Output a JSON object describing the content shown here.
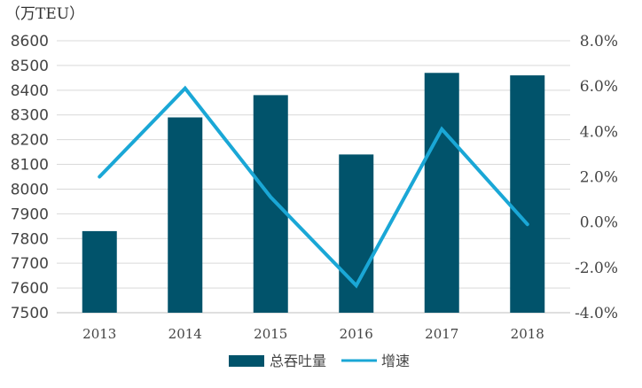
{
  "chart_data": {
    "type": "bar",
    "unit_label": "（万TEU）",
    "categories": [
      "2013",
      "2014",
      "2015",
      "2016",
      "2017",
      "2018"
    ],
    "series": [
      {
        "name": "总吞吐量",
        "type": "bar",
        "axis": "left",
        "values": [
          7830,
          8290,
          8380,
          8140,
          8470,
          8460
        ],
        "color": "#01536b"
      },
      {
        "name": "增速",
        "type": "line",
        "axis": "right",
        "values": [
          2.0,
          5.9,
          1.1,
          -2.8,
          4.1,
          -0.1
        ],
        "color": "#1aa7d6"
      }
    ],
    "y_left": {
      "range": [
        7500,
        8600
      ],
      "ticks": [
        "7500",
        "7600",
        "7700",
        "7800",
        "7900",
        "8000",
        "8100",
        "8200",
        "8300",
        "8400",
        "8500",
        "8600"
      ]
    },
    "y_right": {
      "range": [
        -4.0,
        8.0
      ],
      "ticks": [
        "-4.0%",
        "-2.0%",
        "0.0%",
        "2.0%",
        "4.0%",
        "6.0%",
        "8.0%"
      ]
    },
    "grid": true,
    "legend_position": "bottom"
  }
}
